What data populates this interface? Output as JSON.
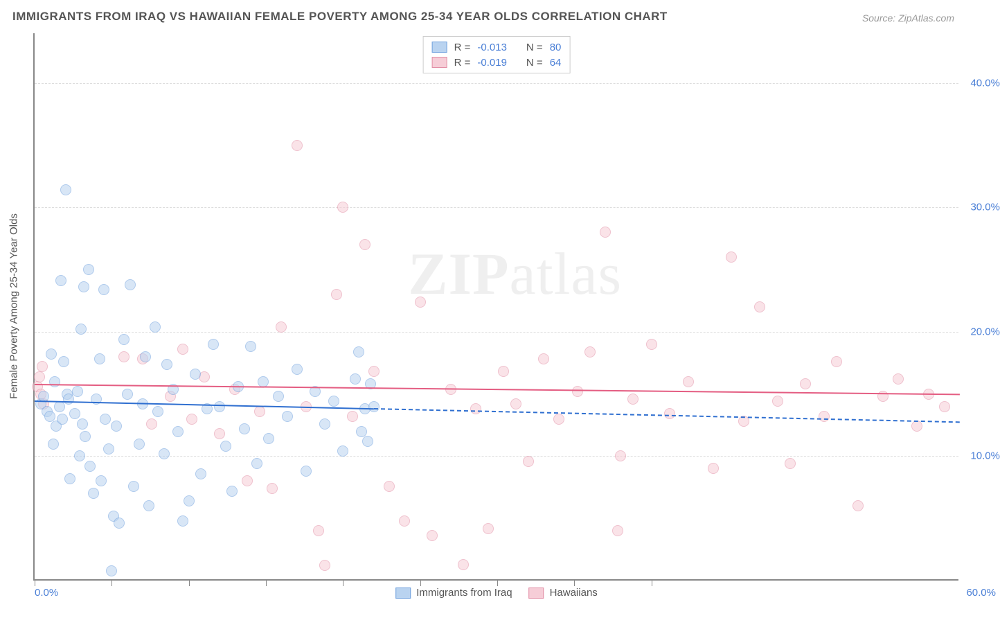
{
  "title": "IMMIGRANTS FROM IRAQ VS HAWAIIAN FEMALE POVERTY AMONG 25-34 YEAR OLDS CORRELATION CHART",
  "source": "Source: ZipAtlas.com",
  "watermark_a": "ZIP",
  "watermark_b": "atlas",
  "chart": {
    "type": "scatter",
    "xlim": [
      0,
      60
    ],
    "ylim": [
      0,
      44
    ],
    "x_tick_positions": [
      0,
      5,
      10,
      15,
      20,
      25,
      30,
      35,
      40
    ],
    "y_ticks": [
      10,
      20,
      30,
      40
    ],
    "y_tick_labels": [
      "10.0%",
      "20.0%",
      "30.0%",
      "40.0%"
    ],
    "x_min_label": "0.0%",
    "x_max_label": "60.0%",
    "ylabel": "Female Poverty Among 25-34 Year Olds",
    "background_color": "#ffffff",
    "grid_color": "#dddddd",
    "axis_color": "#888888",
    "title_fontsize": 17,
    "label_fontsize": 15,
    "tick_color": "#4a7fd6",
    "marker_radius": 8,
    "marker_opacity": 0.55,
    "series_a": {
      "name": "Immigrants from Iraq",
      "fill": "#b9d3f0",
      "stroke": "#6fa0dd",
      "line_color": "#2f6fd0",
      "R_label": "R =",
      "R": "-0.013",
      "N_label": "N =",
      "N": "80",
      "trend": {
        "x0": 0,
        "y0": 14.5,
        "x1_solid": 22,
        "x1": 60,
        "y1": 12.8
      },
      "points": [
        [
          0.4,
          14.2
        ],
        [
          0.6,
          14.8
        ],
        [
          0.8,
          13.6
        ],
        [
          1.0,
          13.2
        ],
        [
          1.1,
          18.2
        ],
        [
          1.2,
          11.0
        ],
        [
          1.3,
          16.0
        ],
        [
          1.4,
          12.4
        ],
        [
          1.6,
          14.0
        ],
        [
          1.7,
          24.1
        ],
        [
          1.8,
          13.0
        ],
        [
          1.9,
          17.6
        ],
        [
          2.0,
          31.4
        ],
        [
          2.1,
          15.0
        ],
        [
          2.2,
          14.6
        ],
        [
          2.3,
          8.2
        ],
        [
          2.6,
          13.4
        ],
        [
          2.8,
          15.2
        ],
        [
          2.9,
          10.0
        ],
        [
          3.0,
          20.2
        ],
        [
          3.1,
          12.6
        ],
        [
          3.2,
          23.6
        ],
        [
          3.3,
          11.6
        ],
        [
          3.5,
          25.0
        ],
        [
          3.6,
          9.2
        ],
        [
          3.8,
          7.0
        ],
        [
          4.0,
          14.6
        ],
        [
          4.2,
          17.8
        ],
        [
          4.3,
          8.0
        ],
        [
          4.5,
          23.4
        ],
        [
          4.6,
          13.0
        ],
        [
          4.8,
          10.6
        ],
        [
          5.0,
          0.8
        ],
        [
          5.1,
          5.2
        ],
        [
          5.3,
          12.4
        ],
        [
          5.5,
          4.6
        ],
        [
          5.8,
          19.4
        ],
        [
          6.0,
          15.0
        ],
        [
          6.2,
          23.8
        ],
        [
          6.4,
          7.6
        ],
        [
          6.8,
          11.0
        ],
        [
          7.0,
          14.2
        ],
        [
          7.2,
          18.0
        ],
        [
          7.4,
          6.0
        ],
        [
          7.8,
          20.4
        ],
        [
          8.0,
          13.6
        ],
        [
          8.4,
          10.2
        ],
        [
          8.6,
          17.4
        ],
        [
          9.0,
          15.4
        ],
        [
          9.3,
          12.0
        ],
        [
          9.6,
          4.8
        ],
        [
          10.0,
          6.4
        ],
        [
          10.4,
          16.6
        ],
        [
          10.8,
          8.6
        ],
        [
          11.2,
          13.8
        ],
        [
          11.6,
          19.0
        ],
        [
          12.0,
          14.0
        ],
        [
          12.4,
          10.8
        ],
        [
          12.8,
          7.2
        ],
        [
          13.2,
          15.6
        ],
        [
          13.6,
          12.2
        ],
        [
          14.0,
          18.8
        ],
        [
          14.4,
          9.4
        ],
        [
          14.8,
          16.0
        ],
        [
          15.2,
          11.4
        ],
        [
          15.8,
          14.8
        ],
        [
          16.4,
          13.2
        ],
        [
          17.0,
          17.0
        ],
        [
          17.6,
          8.8
        ],
        [
          18.2,
          15.2
        ],
        [
          18.8,
          12.6
        ],
        [
          19.4,
          14.4
        ],
        [
          20.0,
          10.4
        ],
        [
          20.8,
          16.2
        ],
        [
          21.0,
          18.4
        ],
        [
          21.2,
          12.0
        ],
        [
          21.4,
          13.8
        ],
        [
          21.6,
          11.2
        ],
        [
          21.8,
          15.8
        ],
        [
          22.0,
          14.0
        ]
      ]
    },
    "series_b": {
      "name": "Hawaiians",
      "fill": "#f6cdd7",
      "stroke": "#e28fa6",
      "line_color": "#e45d82",
      "R_label": "R =",
      "R": "-0.019",
      "N_label": "N =",
      "N": "64",
      "trend": {
        "x0": 0,
        "y0": 15.8,
        "x1_solid": 60,
        "x1": 60,
        "y1": 15.0
      },
      "points": [
        [
          0.2,
          15.6
        ],
        [
          0.3,
          16.4
        ],
        [
          0.4,
          15.0
        ],
        [
          0.5,
          17.2
        ],
        [
          0.6,
          14.2
        ],
        [
          5.8,
          18.0
        ],
        [
          7.0,
          17.8
        ],
        [
          7.6,
          12.6
        ],
        [
          8.8,
          14.8
        ],
        [
          9.6,
          18.6
        ],
        [
          10.2,
          13.0
        ],
        [
          11.0,
          16.4
        ],
        [
          12.0,
          11.8
        ],
        [
          13.0,
          15.4
        ],
        [
          13.8,
          8.0
        ],
        [
          14.6,
          13.6
        ],
        [
          15.4,
          7.4
        ],
        [
          16.0,
          20.4
        ],
        [
          17.0,
          35.0
        ],
        [
          17.6,
          14.0
        ],
        [
          18.4,
          4.0
        ],
        [
          18.8,
          1.2
        ],
        [
          19.6,
          23.0
        ],
        [
          20.0,
          30.0
        ],
        [
          20.6,
          13.2
        ],
        [
          21.4,
          27.0
        ],
        [
          22.0,
          16.8
        ],
        [
          23.0,
          7.6
        ],
        [
          24.0,
          4.8
        ],
        [
          25.0,
          22.4
        ],
        [
          25.8,
          3.6
        ],
        [
          27.0,
          15.4
        ],
        [
          27.8,
          1.3
        ],
        [
          28.6,
          13.8
        ],
        [
          29.4,
          4.2
        ],
        [
          30.4,
          16.8
        ],
        [
          31.2,
          14.2
        ],
        [
          32.0,
          9.6
        ],
        [
          33.0,
          17.8
        ],
        [
          34.0,
          13.0
        ],
        [
          35.2,
          15.2
        ],
        [
          36.0,
          18.4
        ],
        [
          37.0,
          28.0
        ],
        [
          37.8,
          4.0
        ],
        [
          38.0,
          10.0
        ],
        [
          38.8,
          14.6
        ],
        [
          40.0,
          19.0
        ],
        [
          41.2,
          13.4
        ],
        [
          42.4,
          16.0
        ],
        [
          44.0,
          9.0
        ],
        [
          45.2,
          26.0
        ],
        [
          46.0,
          12.8
        ],
        [
          47.0,
          22.0
        ],
        [
          48.2,
          14.4
        ],
        [
          49.0,
          9.4
        ],
        [
          50.0,
          15.8
        ],
        [
          51.2,
          13.2
        ],
        [
          52.0,
          17.6
        ],
        [
          53.4,
          6.0
        ],
        [
          55.0,
          14.8
        ],
        [
          56.0,
          16.2
        ],
        [
          57.2,
          12.4
        ],
        [
          58.0,
          15.0
        ],
        [
          59.0,
          14.0
        ]
      ]
    }
  }
}
